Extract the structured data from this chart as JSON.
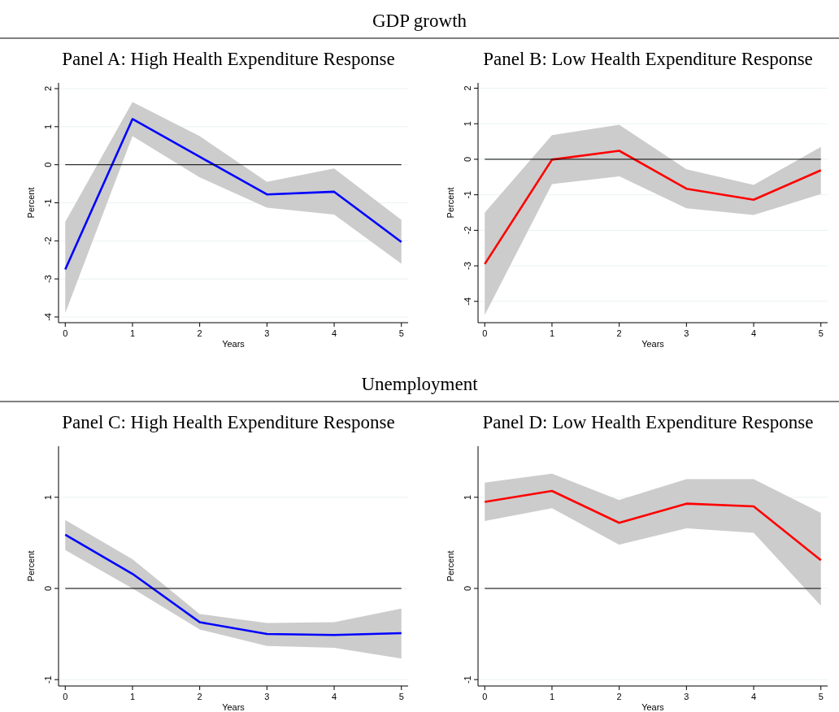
{
  "chart_data": [
    {
      "type": "line",
      "subtitle": "GDP growth",
      "title": "Panel A: High Health Expenditure Response",
      "xlabel": "Years",
      "ylabel": "Percent",
      "x": [
        0,
        1,
        2,
        3,
        4,
        5
      ],
      "xlim": [
        -0.1,
        5.1
      ],
      "xticks": [
        0,
        1,
        2,
        3,
        4,
        5
      ],
      "ylim": [
        -4.15,
        2.15
      ],
      "yticks": [
        -4,
        -3,
        -2,
        -1,
        0,
        1,
        2
      ],
      "grid": "y",
      "ref_lines": [
        {
          "axis": "y",
          "value": 0,
          "color": "#000000"
        }
      ],
      "series": [
        {
          "color": "#0000ff",
          "values": [
            -2.75,
            1.2,
            0.21,
            -0.78,
            -0.71,
            -2.03
          ],
          "lower": [
            -3.9,
            0.75,
            -0.33,
            -1.13,
            -1.31,
            -2.6
          ],
          "upper": [
            -1.5,
            1.65,
            0.75,
            -0.45,
            -0.1,
            -1.45
          ]
        }
      ]
    },
    {
      "type": "line",
      "title": "Panel B: Low Health Expenditure Response",
      "xlabel": "Years",
      "ylabel": "Percent",
      "x": [
        0,
        1,
        2,
        3,
        4,
        5
      ],
      "xlim": [
        -0.1,
        5.1
      ],
      "xticks": [
        0,
        1,
        2,
        3,
        4,
        5
      ],
      "ylim": [
        -4.6,
        2.15
      ],
      "yticks": [
        -4,
        -3,
        -2,
        -1,
        0,
        1,
        2
      ],
      "grid": "y",
      "ref_lines": [
        {
          "axis": "y",
          "value": 0,
          "color": "#000000"
        }
      ],
      "series": [
        {
          "color": "#ff0000",
          "values": [
            -2.95,
            -0.01,
            0.24,
            -0.83,
            -1.14,
            -0.31
          ],
          "lower": [
            -4.38,
            -0.7,
            -0.48,
            -1.38,
            -1.57,
            -0.98
          ],
          "upper": [
            -1.5,
            0.68,
            0.97,
            -0.28,
            -0.72,
            0.35
          ]
        }
      ]
    },
    {
      "type": "line",
      "subtitle": "Unemployment",
      "title": "Panel C: High Health Expenditure Response",
      "xlabel": "Years",
      "ylabel": "Percent",
      "x": [
        0,
        1,
        2,
        3,
        4,
        5
      ],
      "xlim": [
        -0.1,
        5.1
      ],
      "xticks": [
        0,
        1,
        2,
        3,
        4,
        5
      ],
      "ylim": [
        -1.07,
        1.56
      ],
      "yticks": [
        -1,
        0,
        1
      ],
      "grid": "y",
      "ref_lines": [
        {
          "axis": "y",
          "value": 0,
          "color": "#000000"
        }
      ],
      "series": [
        {
          "color": "#0000ff",
          "values": [
            0.59,
            0.16,
            -0.37,
            -0.5,
            -0.51,
            -0.49
          ],
          "lower": [
            0.42,
            0.0,
            -0.45,
            -0.63,
            -0.65,
            -0.77
          ],
          "upper": [
            0.75,
            0.32,
            -0.28,
            -0.38,
            -0.37,
            -0.22
          ]
        }
      ]
    },
    {
      "type": "line",
      "title": "Panel D: Low Health Expenditure Response",
      "xlabel": "Years",
      "ylabel": "Percent",
      "x": [
        0,
        1,
        2,
        3,
        4,
        5
      ],
      "xlim": [
        -0.1,
        5.1
      ],
      "xticks": [
        0,
        1,
        2,
        3,
        4,
        5
      ],
      "ylim": [
        -1.07,
        1.56
      ],
      "yticks": [
        -1,
        0,
        1
      ],
      "grid": "y",
      "ref_lines": [
        {
          "axis": "y",
          "value": 0,
          "color": "#000000"
        }
      ],
      "series": [
        {
          "color": "#ff0000",
          "values": [
            0.95,
            1.07,
            0.72,
            0.93,
            0.9,
            0.31
          ],
          "lower": [
            0.74,
            0.88,
            0.48,
            0.66,
            0.61,
            -0.19
          ],
          "upper": [
            1.16,
            1.26,
            0.97,
            1.2,
            1.2,
            0.83
          ]
        }
      ]
    }
  ]
}
